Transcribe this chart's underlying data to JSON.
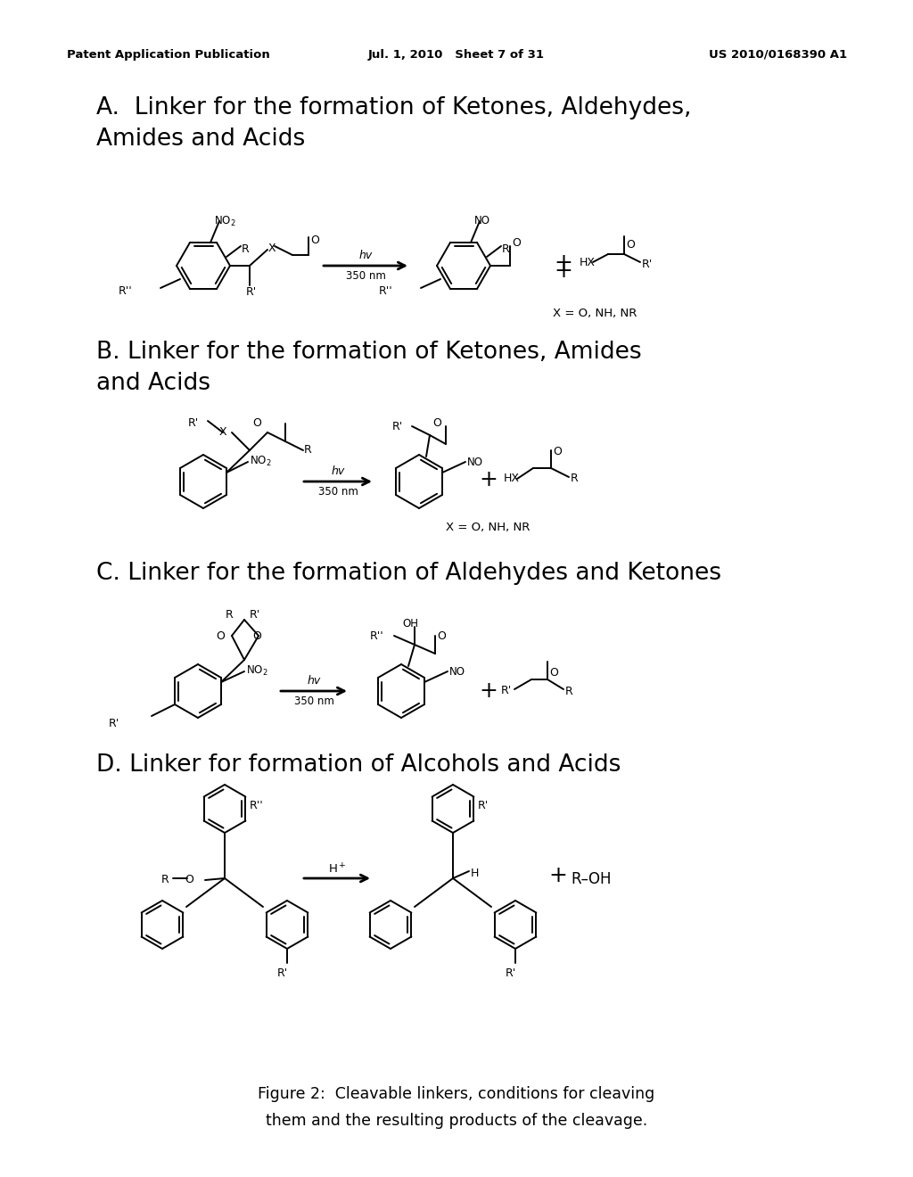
{
  "header_left": "Patent Application Publication",
  "header_mid": "Jul. 1, 2010   Sheet 7 of 31",
  "header_right": "US 2010/0168390 A1",
  "section_A_line1": "A.  Linker for the formation of Ketones, Aldehydes,",
  "section_A_line2": "Amides and Acids",
  "section_B_line1": "B. Linker for the formation of Ketones, Amides",
  "section_B_line2": "and Acids",
  "section_C_line1": "C. Linker for the formation of Aldehydes and Ketones",
  "section_D_line1": "D. Linker for formation of Alcohols and Acids",
  "caption_line1": "Figure 2:  Cleavable linkers, conditions for cleaving",
  "caption_line2": "them and the resulting products of the cleavage.",
  "bg_color": "#ffffff"
}
